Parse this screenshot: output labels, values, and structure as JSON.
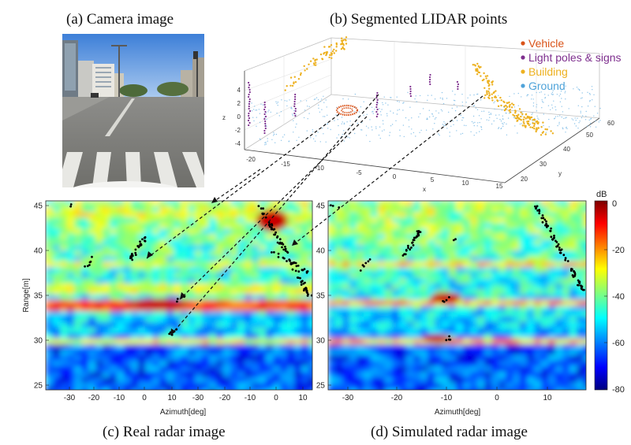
{
  "captions": {
    "a": "(a) Camera image",
    "b": "(b) Segmented LIDAR points",
    "c": "(c) Real radar image",
    "d": "(d) Simulated radar image"
  },
  "lidar": {
    "legend": [
      {
        "label": "Vehicle",
        "color": "#d95319"
      },
      {
        "label": "Light poles & signs",
        "color": "#7e2f8e"
      },
      {
        "label": "Building",
        "color": "#edb120"
      },
      {
        "label": "Ground",
        "color": "#4fa3d9"
      }
    ],
    "x_label": "x",
    "y_label": "y",
    "z_label": "z",
    "x_ticks": [
      "-20",
      "-15",
      "-10",
      "-5",
      "0",
      "5",
      "10",
      "15"
    ],
    "y_ticks": [
      "20",
      "30",
      "40",
      "50",
      "60"
    ],
    "z_ticks": [
      "4",
      "2",
      "0",
      "-2",
      "-4"
    ]
  },
  "chart_data": [
    {
      "type": "heatmap",
      "title": "(c) Real radar image",
      "xlabel": "Azimuth[deg]",
      "ylabel": "Range[m]",
      "x_tick_labels": [
        "-30",
        "-20",
        "-10",
        "0",
        "10",
        "-30",
        "-20",
        "-10",
        "0",
        "10"
      ],
      "y_tick_labels": [
        "45",
        "40",
        "35",
        "30",
        "25"
      ],
      "ylim": [
        25,
        45
      ],
      "colorbar": {
        "label": "dB",
        "range": [
          -80,
          0
        ],
        "ticks": [
          "0",
          "-20",
          "-40",
          "-60",
          "-80"
        ]
      }
    },
    {
      "type": "heatmap",
      "title": "(d) Simulated radar image",
      "xlabel": "Azimuth[deg]",
      "ylabel": "",
      "x_tick_labels": [
        "-30",
        "-20",
        "-10",
        "0",
        "10"
      ],
      "y_tick_labels": [
        "45",
        "40",
        "35",
        "30",
        "25"
      ],
      "xlim": [
        -35,
        16
      ],
      "ylim": [
        25,
        45
      ]
    }
  ]
}
